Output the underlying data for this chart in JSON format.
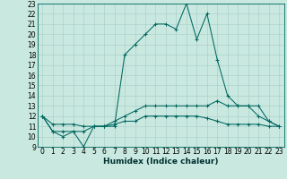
{
  "xlabel": "Humidex (Indice chaleur)",
  "bg_color": "#c8e8e0",
  "grid_color": "#a8ccc8",
  "line_color": "#006860",
  "xlim": [
    -0.5,
    23.5
  ],
  "ylim": [
    9,
    23
  ],
  "xticks": [
    0,
    1,
    2,
    3,
    4,
    5,
    6,
    7,
    8,
    9,
    10,
    11,
    12,
    13,
    14,
    15,
    16,
    17,
    18,
    19,
    20,
    21,
    22,
    23
  ],
  "yticks": [
    9,
    10,
    11,
    12,
    13,
    14,
    15,
    16,
    17,
    18,
    19,
    20,
    21,
    22,
    23
  ],
  "series": [
    [
      12,
      10.5,
      10,
      10.5,
      9,
      11,
      11,
      11,
      18,
      19,
      20,
      21,
      21,
      20.5,
      23,
      19.5,
      22,
      17.5,
      14,
      13,
      13,
      12,
      11.5,
      11
    ],
    [
      12,
      10.5,
      10.5,
      10.5,
      10.5,
      11,
      11,
      11.5,
      12,
      12.5,
      13,
      13,
      13,
      13,
      13,
      13,
      13,
      13.5,
      13,
      13,
      13,
      13,
      11.5,
      11
    ],
    [
      12,
      11.2,
      11.2,
      11.2,
      11,
      11,
      11,
      11.2,
      11.5,
      11.5,
      12,
      12,
      12,
      12,
      12,
      12,
      11.8,
      11.5,
      11.2,
      11.2,
      11.2,
      11.2,
      11,
      11
    ]
  ],
  "x": [
    0,
    1,
    2,
    3,
    4,
    5,
    6,
    7,
    8,
    9,
    10,
    11,
    12,
    13,
    14,
    15,
    16,
    17,
    18,
    19,
    20,
    21,
    22,
    23
  ],
  "tick_fontsize": 5.5,
  "xlabel_fontsize": 6.5,
  "marker_size": 2.5,
  "linewidth": 0.75
}
